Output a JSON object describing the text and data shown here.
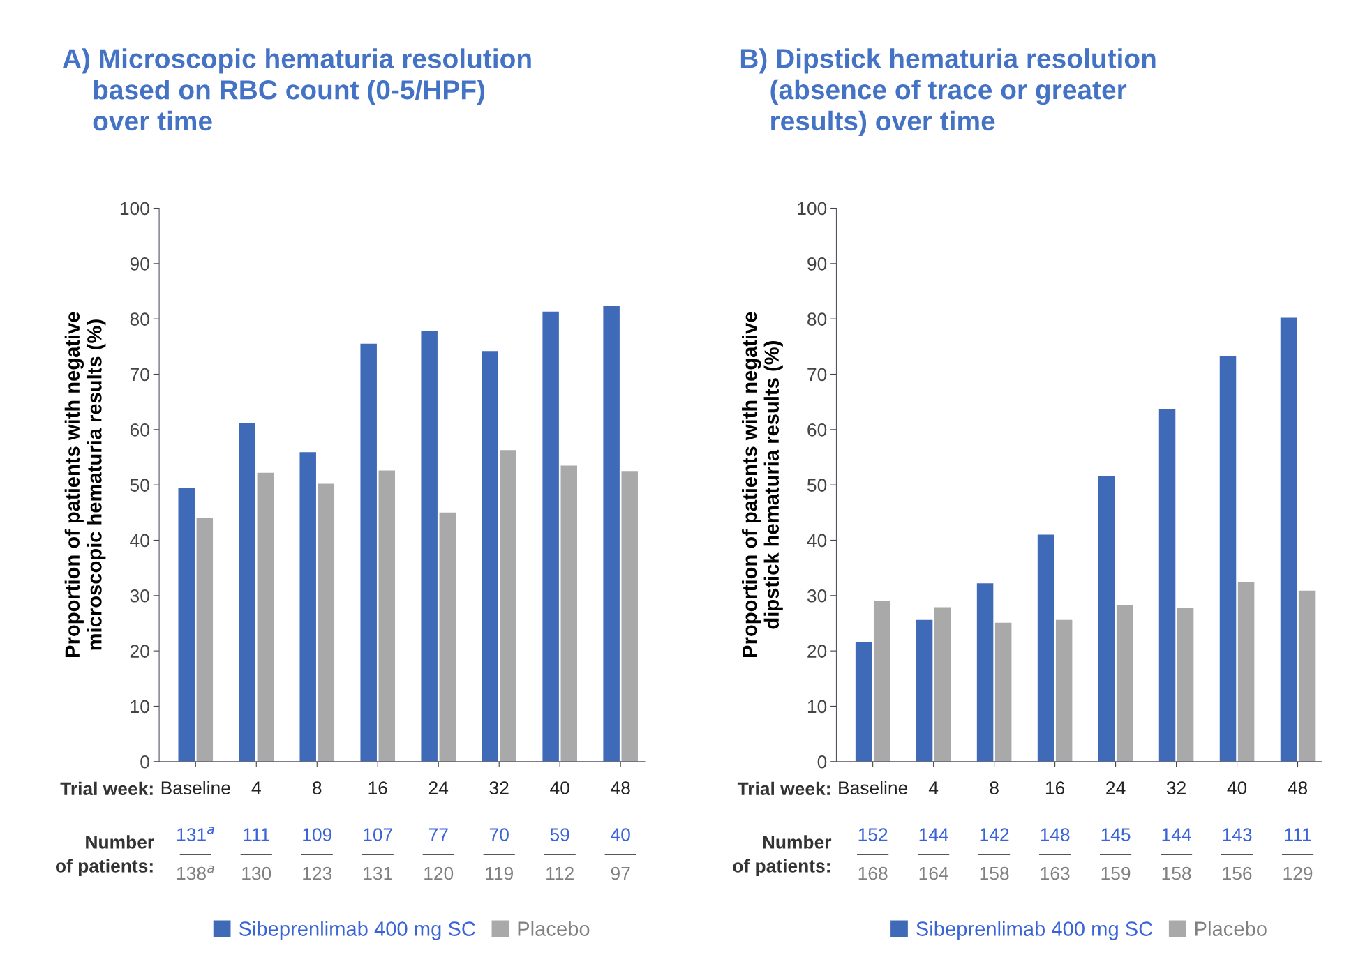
{
  "chart_data": [
    {
      "type": "bar",
      "title": "A) Microscopic hematuria resolution\n    based on RBC count (0-5/HPF)\n    over time",
      "xlabel": "Trial week:",
      "ylabel": "Proportion of patients with negative\nmicroscopic hematuria results (%)",
      "categories": [
        "Baseline",
        "4",
        "8",
        "16",
        "24",
        "32",
        "40",
        "48"
      ],
      "series": [
        {
          "name": "Sibeprenlimab 400 mg SC",
          "color": "#3f6ab8",
          "values": [
            49.4,
            61.1,
            55.9,
            75.5,
            77.8,
            74.2,
            81.3,
            82.3
          ]
        },
        {
          "name": "Placebo",
          "color": "#a9a9a9",
          "values": [
            44.1,
            52.2,
            50.2,
            52.6,
            45.0,
            56.3,
            53.5,
            52.5
          ]
        }
      ],
      "annotations": [
        "Number\nof patients:",
        "131$^{a}$",
        "111",
        "109",
        "107",
        "77",
        "70",
        "59",
        "40",
        "138$^{a}$",
        "130",
        "123",
        "131",
        "120",
        "119",
        "112",
        "97"
      ],
      "ylim": [
        0,
        100
      ],
      "yticks": [
        0,
        10,
        20,
        30,
        40,
        50,
        60,
        70,
        80,
        90,
        100
      ],
      "grid": false,
      "legend": "bottom"
    },
    {
      "type": "bar",
      "title": "B) Dipstick hematuria resolution\n    (absence of trace or greater\n    results) over time",
      "xlabel": "Trial week:",
      "ylabel": "Proportion of patients with negative\ndipstick hematuria results (%)",
      "categories": [
        "Baseline",
        "4",
        "8",
        "16",
        "24",
        "32",
        "40",
        "48"
      ],
      "series": [
        {
          "name": "Sibeprenlimab 400 mg SC",
          "color": "#3f6ab8",
          "values": [
            21.6,
            25.6,
            32.2,
            41.0,
            51.6,
            63.7,
            73.3,
            80.2
          ]
        },
        {
          "name": "Placebo",
          "color": "#a9a9a9",
          "values": [
            29.1,
            27.9,
            25.1,
            25.6,
            28.3,
            27.7,
            32.5,
            30.9
          ]
        }
      ],
      "annotations": [
        "Number\nof patients:",
        "152",
        "144",
        "142",
        "148",
        "145",
        "144",
        "143",
        "111",
        "168",
        "164",
        "158",
        "163",
        "159",
        "158",
        "156",
        "129"
      ],
      "ylim": [
        0,
        100
      ],
      "yticks": [
        0,
        10,
        20,
        30,
        40,
        50,
        60,
        70,
        80,
        90,
        100
      ],
      "grid": false,
      "legend": "bottom"
    }
  ]
}
